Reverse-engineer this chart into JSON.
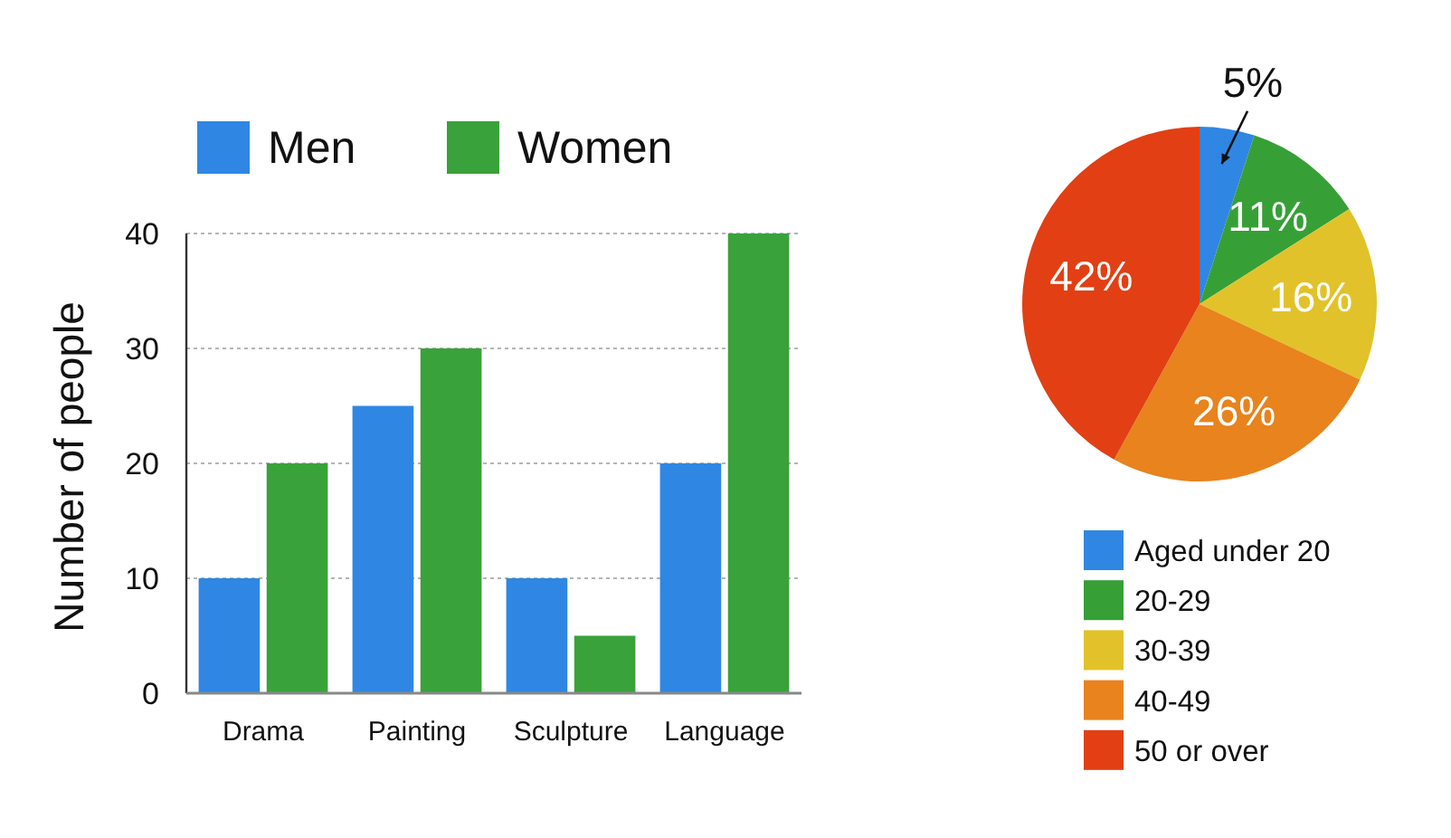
{
  "chart_data": [
    {
      "type": "bar",
      "categories": [
        "Drama",
        "Painting",
        "Sculpture",
        "Language"
      ],
      "series": [
        {
          "name": "Men",
          "color": "#2f87e3",
          "values": [
            10,
            25,
            10,
            20
          ]
        },
        {
          "name": "Women",
          "color": "#3aa23a",
          "values": [
            20,
            30,
            5,
            40
          ]
        }
      ],
      "ylabel": "Number of people",
      "ylim": [
        0,
        40
      ],
      "yticks": [
        0,
        10,
        20,
        30,
        40
      ],
      "grid": "y",
      "legend": "top"
    },
    {
      "type": "pie",
      "categories": [
        "Aged under 20",
        "20-29",
        "30-39",
        "40-49",
        "50 or over"
      ],
      "values": [
        5,
        11,
        16,
        26,
        42
      ],
      "colors": [
        "#2f87e3",
        "#36a036",
        "#e2c22a",
        "#e8831e",
        "#e23f14"
      ],
      "value_labels": [
        "5%",
        "11%",
        "16%",
        "26%",
        "42%"
      ],
      "legend": "bottom"
    }
  ]
}
